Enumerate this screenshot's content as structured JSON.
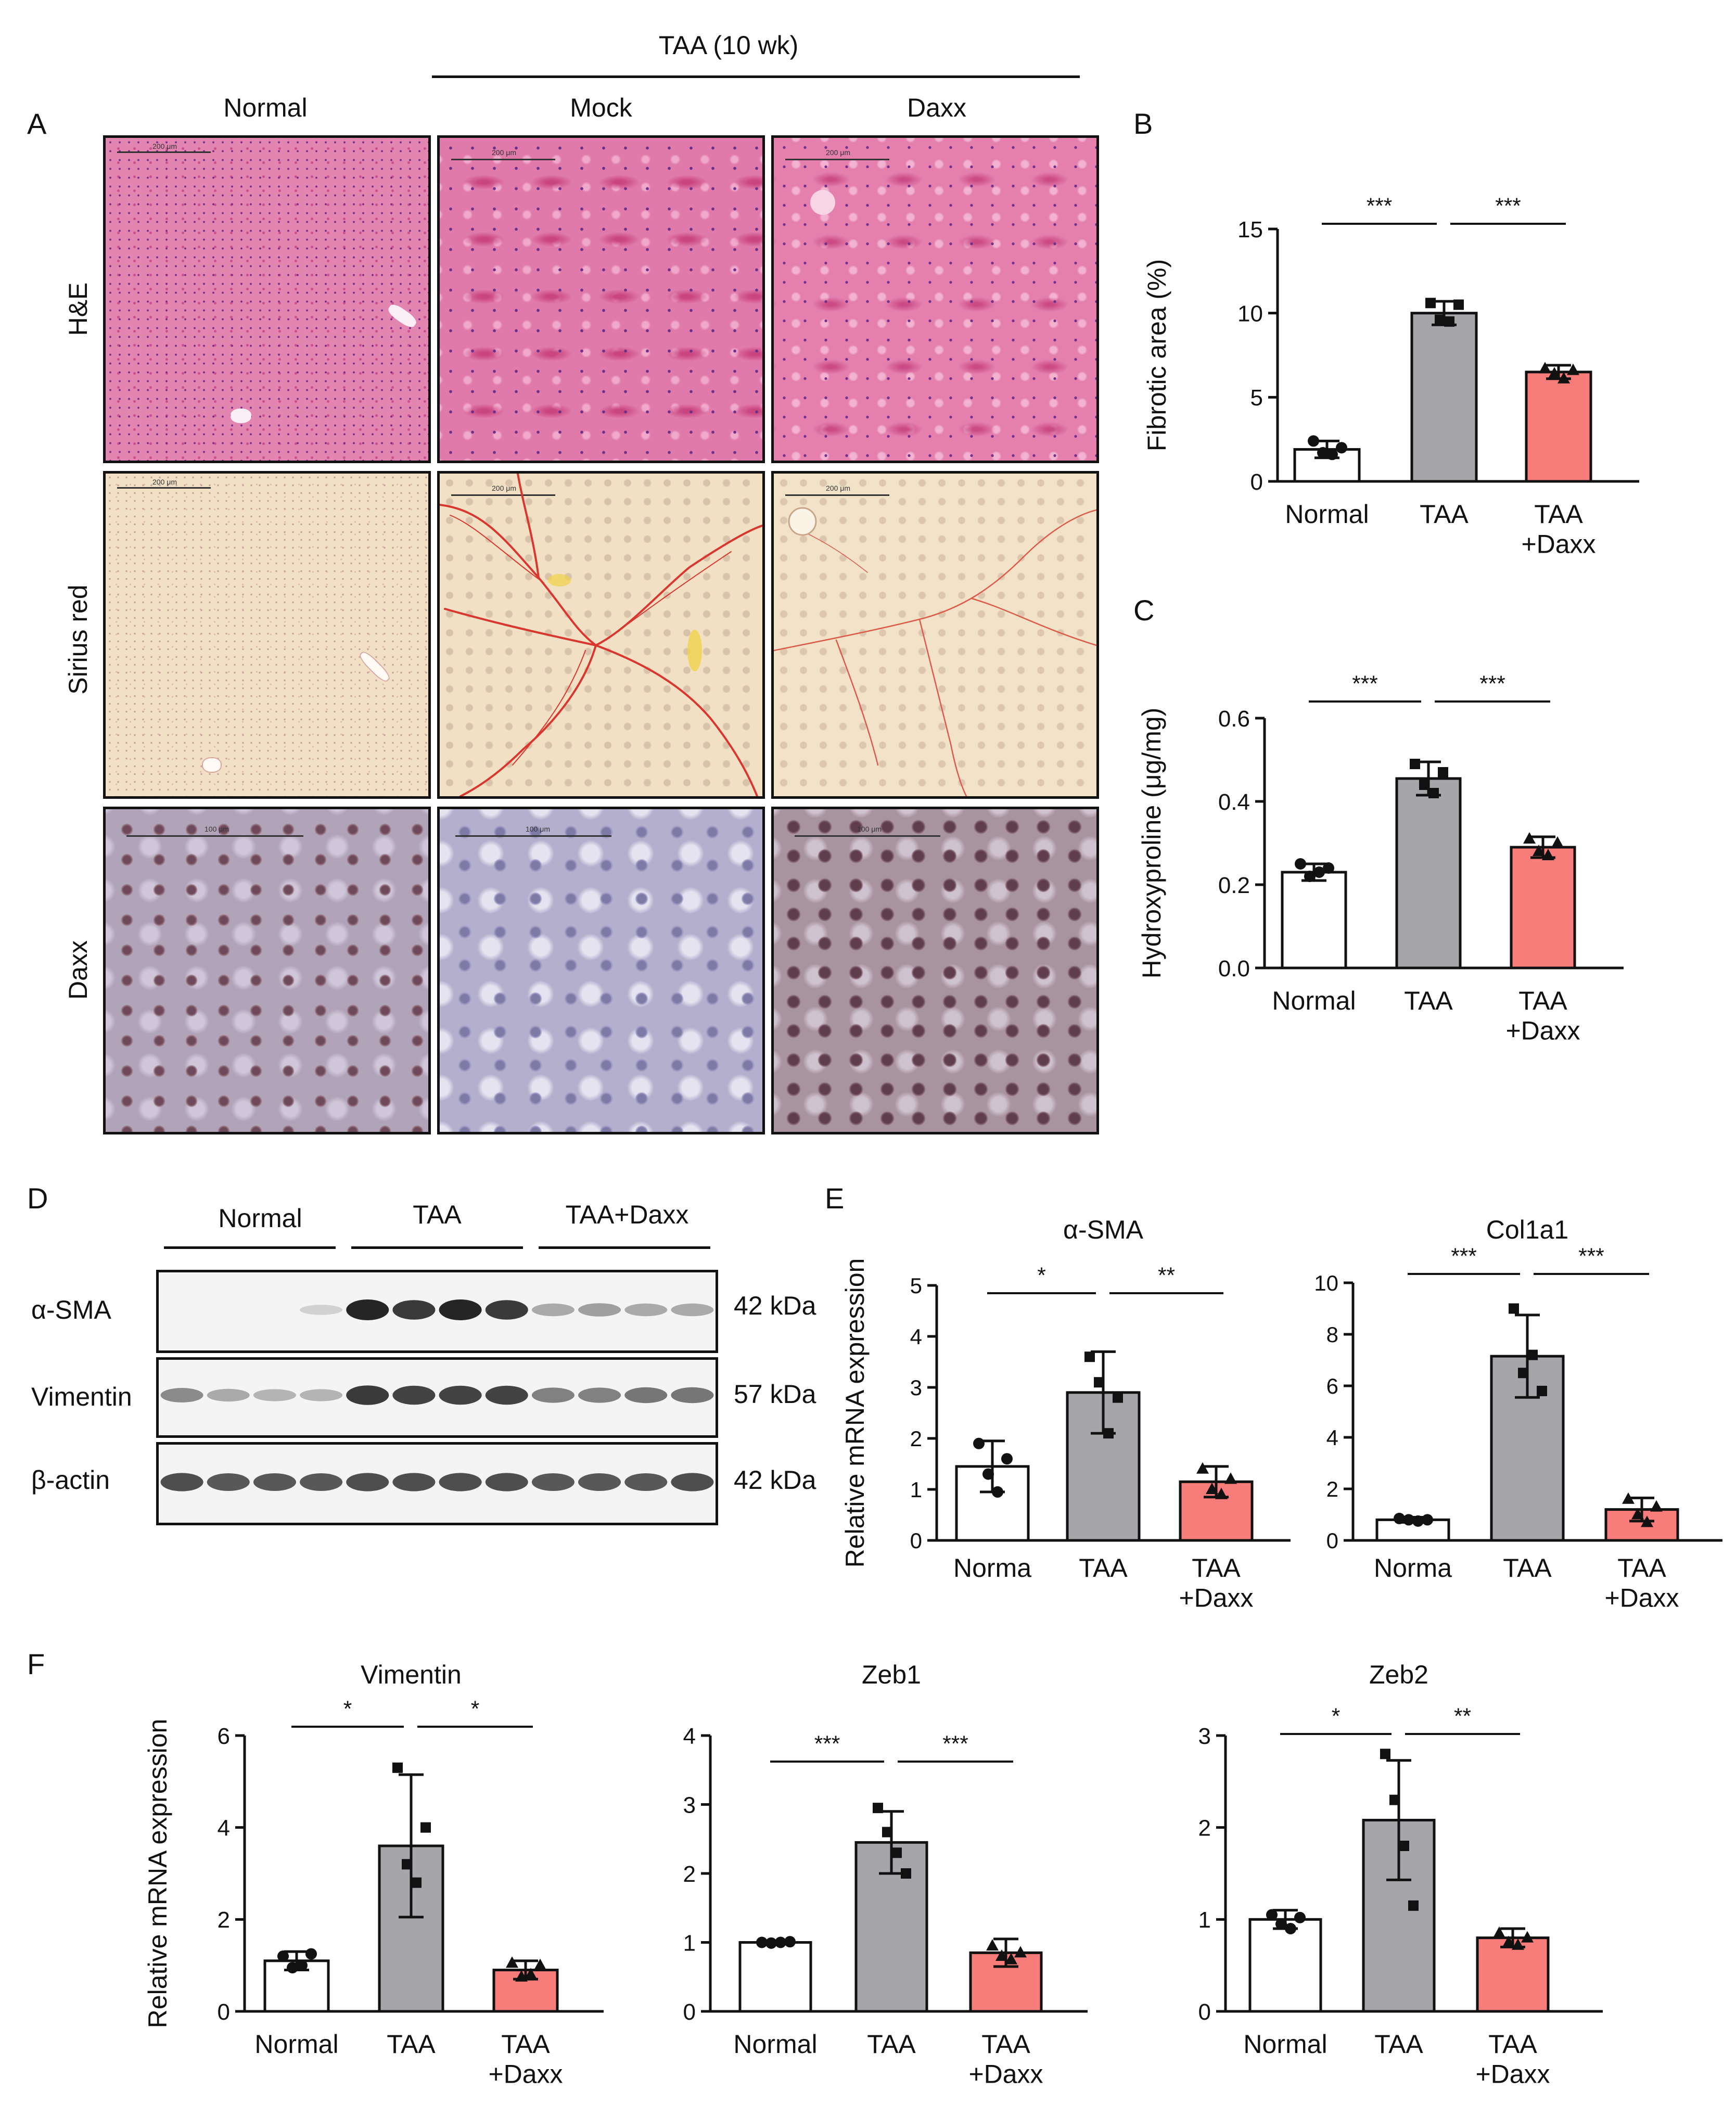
{
  "figure": {
    "panel_labels": {
      "A": "A",
      "B": "B",
      "C": "C",
      "D": "D",
      "E": "E",
      "F": "F"
    },
    "treatment_header": "TAA (10 wk)",
    "column_headers": [
      "Normal",
      "Mock",
      "Daxx"
    ],
    "row_labels": [
      "H&E",
      "Sirius red",
      "Daxx"
    ],
    "scale_labels": {
      "he": "200 μm",
      "sirius": "200 μm",
      "daxx": "100 μm"
    },
    "histology_colors": {
      "he_bg": "#e27aa9",
      "sirius_bg": "#f1dcc0",
      "daxx_bg": "#a69abb",
      "collagen": "#d8362e"
    },
    "western": {
      "groups": [
        "Normal",
        "TAA",
        "TAA+Daxx"
      ],
      "proteins": [
        {
          "name": "α-SMA",
          "size": "42 kDa",
          "intensities": [
            0.0,
            0.0,
            0.0,
            0.15,
            1.0,
            0.9,
            1.0,
            0.9,
            0.35,
            0.4,
            0.35,
            0.35
          ]
        },
        {
          "name": "Vimentin",
          "size": "57 kDa",
          "intensities": [
            0.5,
            0.35,
            0.3,
            0.3,
            0.9,
            0.85,
            0.85,
            0.85,
            0.55,
            0.55,
            0.6,
            0.6
          ]
        },
        {
          "name": "β-actin",
          "size": "42 kDa",
          "intensities": [
            0.8,
            0.75,
            0.75,
            0.75,
            0.8,
            0.8,
            0.8,
            0.8,
            0.75,
            0.75,
            0.75,
            0.8
          ]
        }
      ]
    },
    "colors": {
      "normal": "#ffffff",
      "taa": "#a6a6aa",
      "daxx": "#f77c7a",
      "stroke": "#111111"
    }
  },
  "chart_data": [
    {
      "id": "B",
      "type": "bar",
      "title": "",
      "ylabel": "Fibrotic area (%)",
      "categories": [
        "Normal",
        "TAA",
        "TAA\n+Daxx"
      ],
      "values": [
        1.9,
        10.0,
        6.5
      ],
      "errors": [
        0.5,
        0.7,
        0.4
      ],
      "points": [
        [
          2.4,
          1.7,
          1.6,
          2.0
        ],
        [
          10.6,
          9.6,
          9.5,
          10.5
        ],
        [
          6.7,
          6.4,
          6.1,
          6.6
        ]
      ],
      "markers": [
        "circle",
        "square",
        "triangle"
      ],
      "ylim": [
        0,
        15
      ],
      "yticks": [
        "0",
        "5",
        "10",
        "15"
      ],
      "ytick_values": [
        0,
        5,
        10,
        15
      ],
      "significance": [
        {
          "from": 0,
          "to": 1,
          "label": "***"
        },
        {
          "from": 1,
          "to": 2,
          "label": "***"
        }
      ]
    },
    {
      "id": "C",
      "type": "bar",
      "title": "",
      "ylabel": "Hydroxyproline (μg/mg)",
      "categories": [
        "Normal",
        "TAA",
        "TAA\n+Daxx"
      ],
      "values": [
        0.23,
        0.455,
        0.29
      ],
      "errors": [
        0.02,
        0.04,
        0.025
      ],
      "points": [
        [
          0.25,
          0.22,
          0.23,
          0.24
        ],
        [
          0.49,
          0.44,
          0.42,
          0.47
        ],
        [
          0.31,
          0.28,
          0.27,
          0.3
        ]
      ],
      "markers": [
        "circle",
        "square",
        "triangle"
      ],
      "ylim": [
        0,
        0.6
      ],
      "yticks": [
        "0.0",
        "0.2",
        "0.4",
        "0.6"
      ],
      "ytick_values": [
        0,
        0.2,
        0.4,
        0.6
      ],
      "significance": [
        {
          "from": 0,
          "to": 1,
          "label": "***"
        },
        {
          "from": 1,
          "to": 2,
          "label": "***"
        }
      ]
    },
    {
      "id": "E1",
      "type": "bar",
      "title": "α-SMA",
      "ylabel": "Relative mRNA expression",
      "categories": [
        "Norma",
        "TAA",
        "TAA\n+Daxx"
      ],
      "values": [
        1.45,
        2.9,
        1.15
      ],
      "errors": [
        0.5,
        0.8,
        0.3
      ],
      "points": [
        [
          1.9,
          1.3,
          0.95,
          1.6
        ],
        [
          3.6,
          3.1,
          2.1,
          2.8
        ],
        [
          1.4,
          1.0,
          0.9,
          1.2
        ]
      ],
      "markers": [
        "circle",
        "square",
        "triangle"
      ],
      "ylim": [
        0,
        5
      ],
      "yticks": [
        "0",
        "1",
        "2",
        "3",
        "4",
        "5"
      ],
      "ytick_values": [
        0,
        1,
        2,
        3,
        4,
        5
      ],
      "significance": [
        {
          "from": 0,
          "to": 1,
          "label": "*"
        },
        {
          "from": 1,
          "to": 2,
          "label": "**"
        }
      ]
    },
    {
      "id": "E2",
      "type": "bar",
      "title": "Col1a1",
      "ylabel": "",
      "categories": [
        "Norma",
        "TAA",
        "TAA\n+Daxx"
      ],
      "values": [
        0.8,
        7.15,
        1.2
      ],
      "errors": [
        0.1,
        1.6,
        0.45
      ],
      "points": [
        [
          0.85,
          0.8,
          0.75,
          0.8
        ],
        [
          9.0,
          6.5,
          7.2,
          5.8
        ],
        [
          1.6,
          1.0,
          0.7,
          1.3
        ]
      ],
      "markers": [
        "circle",
        "square",
        "triangle"
      ],
      "ylim": [
        0,
        10
      ],
      "yticks": [
        "0",
        "2",
        "4",
        "6",
        "8",
        "10"
      ],
      "ytick_values": [
        0,
        2,
        4,
        6,
        8,
        10
      ],
      "significance": [
        {
          "from": 0,
          "to": 1,
          "label": "***"
        },
        {
          "from": 1,
          "to": 2,
          "label": "***"
        }
      ]
    },
    {
      "id": "F1",
      "type": "bar",
      "title": "Vimentin",
      "ylabel": "Relative mRNA expression",
      "categories": [
        "Normal",
        "TAA",
        "TAA\n+Daxx"
      ],
      "values": [
        1.1,
        3.6,
        0.9
      ],
      "errors": [
        0.2,
        1.55,
        0.2
      ],
      "points": [
        [
          1.2,
          0.95,
          1.0,
          1.25
        ],
        [
          5.3,
          3.2,
          2.8,
          4.0
        ],
        [
          1.05,
          0.75,
          0.8,
          1.0
        ]
      ],
      "markers": [
        "circle",
        "square",
        "triangle"
      ],
      "ylim": [
        0,
        6
      ],
      "yticks": [
        "0",
        "2",
        "4",
        "6"
      ],
      "ytick_values": [
        0,
        2,
        4,
        6
      ],
      "significance": [
        {
          "from": 0,
          "to": 1,
          "label": "*"
        },
        {
          "from": 1,
          "to": 2,
          "label": "*"
        }
      ]
    },
    {
      "id": "F2",
      "type": "bar",
      "title": "Zeb1",
      "ylabel": "",
      "categories": [
        "Normal",
        "TAA",
        "TAA\n+Daxx"
      ],
      "values": [
        1.0,
        2.45,
        0.85
      ],
      "errors": [
        0.02,
        0.45,
        0.2
      ],
      "points": [
        [
          1.0,
          0.99,
          1.0,
          1.01
        ],
        [
          2.95,
          2.6,
          2.3,
          2.0
        ],
        [
          0.95,
          0.8,
          0.75,
          0.85
        ]
      ],
      "markers": [
        "circle",
        "square",
        "triangle"
      ],
      "ylim": [
        0,
        4
      ],
      "yticks": [
        "0",
        "1",
        "2",
        "3",
        "4"
      ],
      "ytick_values": [
        0,
        1,
        2,
        3,
        4
      ],
      "significance": [
        {
          "from": 0,
          "to": 1,
          "label": "***"
        },
        {
          "from": 1,
          "to": 2,
          "label": "***"
        }
      ]
    },
    {
      "id": "F3",
      "type": "bar",
      "title": "Zeb2",
      "ylabel": "",
      "categories": [
        "Normal",
        "TAA",
        "TAA\n+Daxx"
      ],
      "values": [
        1.0,
        2.08,
        0.8
      ],
      "errors": [
        0.1,
        0.65,
        0.1
      ],
      "points": [
        [
          1.05,
          0.95,
          0.9,
          1.02
        ],
        [
          2.8,
          2.3,
          1.8,
          1.15
        ],
        [
          0.85,
          0.75,
          0.72,
          0.8
        ]
      ],
      "markers": [
        "circle",
        "square",
        "triangle"
      ],
      "ylim": [
        0,
        3
      ],
      "yticks": [
        "0",
        "1",
        "2",
        "3"
      ],
      "ytick_values": [
        0,
        1,
        2,
        3
      ],
      "significance": [
        {
          "from": 0,
          "to": 1,
          "label": "*"
        },
        {
          "from": 1,
          "to": 2,
          "label": "**"
        }
      ]
    }
  ]
}
